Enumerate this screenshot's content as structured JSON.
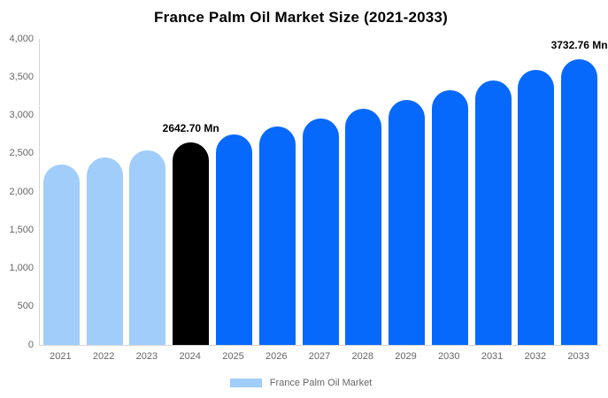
{
  "chart_data": {
    "type": "bar",
    "title": "France Palm Oil Market Size (2021-2033)",
    "categories": [
      "2021",
      "2022",
      "2023",
      "2024",
      "2025",
      "2026",
      "2027",
      "2028",
      "2029",
      "2030",
      "2031",
      "2032",
      "2033"
    ],
    "series": [
      {
        "name": "France Palm Oil Market",
        "values": [
          2355.28,
          2447.43,
          2543.18,
          2642.7,
          2746.11,
          2853.56,
          2965.23,
          3081.26,
          3201.84,
          3327.13,
          3457.33,
          3592.62,
          3732.76
        ]
      }
    ],
    "unit": "Mn",
    "xlabel": "",
    "ylabel": "",
    "ylim": [
      0,
      4000
    ],
    "ytick_values": [
      0,
      500,
      1000,
      1500,
      2000,
      2500,
      3000,
      3500,
      4000
    ],
    "ytick_labels": [
      "0",
      "500",
      "1,000",
      "1,500",
      "2,000",
      "2,500",
      "3,000",
      "3,500",
      "4,000"
    ],
    "grid": false,
    "legend_position": "bottom",
    "bar_colors": [
      "#a0cdfa",
      "#a0cdfa",
      "#a0cdfa",
      "#000000",
      "#0669fc",
      "#0669fc",
      "#0669fc",
      "#0669fc",
      "#0669fc",
      "#0669fc",
      "#0669fc",
      "#0669fc",
      "#0669fc"
    ],
    "annotations": [
      {
        "category": "2024",
        "text": "2642.70 Mn"
      },
      {
        "category": "2033",
        "text": "3732.76 Mn"
      }
    ]
  },
  "legend": {
    "label": "France Palm Oil Market",
    "swatch_color": "#a0cdfa"
  },
  "colors": {
    "past_bars": "#a0cdfa",
    "highlight_bar": "#000000",
    "forecast_bars": "#0669fc",
    "axis_line": "#d6d6d6",
    "tick_text": "#666666",
    "title_text": "#000000",
    "background": "#ffffff"
  }
}
